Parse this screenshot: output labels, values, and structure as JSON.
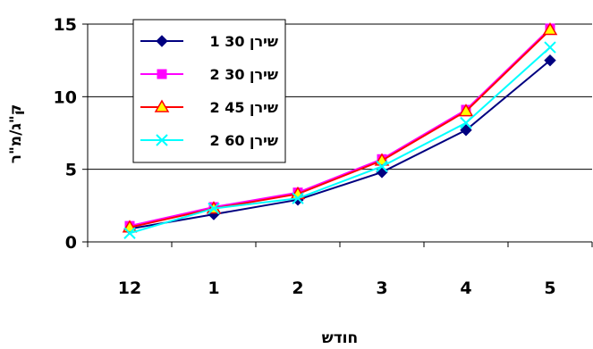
{
  "chart_data": {
    "type": "line",
    "xlabel": "חודש",
    "ylabel": "ק\"ג/מ\"ר",
    "categories": [
      "12",
      "1",
      "2",
      "3",
      "4",
      "5"
    ],
    "ylim": [
      0,
      15
    ],
    "yticks": [
      0,
      5,
      10,
      15
    ],
    "grid": true,
    "legend_position": "top-left",
    "series": [
      {
        "name": "1  30 שירן",
        "color": "#000080",
        "marker": "diamond",
        "values": [
          0.9,
          1.9,
          2.9,
          4.8,
          7.7,
          12.5
        ]
      },
      {
        "name": "2  30 שירן",
        "color": "#FF00FF",
        "marker": "square",
        "values": [
          1.1,
          2.4,
          3.4,
          5.7,
          9.1,
          14.7
        ]
      },
      {
        "name": "2  45 שירן",
        "color": "#FF0000",
        "marker": "triangle",
        "values": [
          1.0,
          2.3,
          3.3,
          5.6,
          9.0,
          14.6
        ]
      },
      {
        "name": "2  60 שירן",
        "color": "#00FFFF",
        "marker": "x",
        "values": [
          0.6,
          2.3,
          3.0,
          5.2,
          8.2,
          13.4
        ]
      }
    ]
  }
}
